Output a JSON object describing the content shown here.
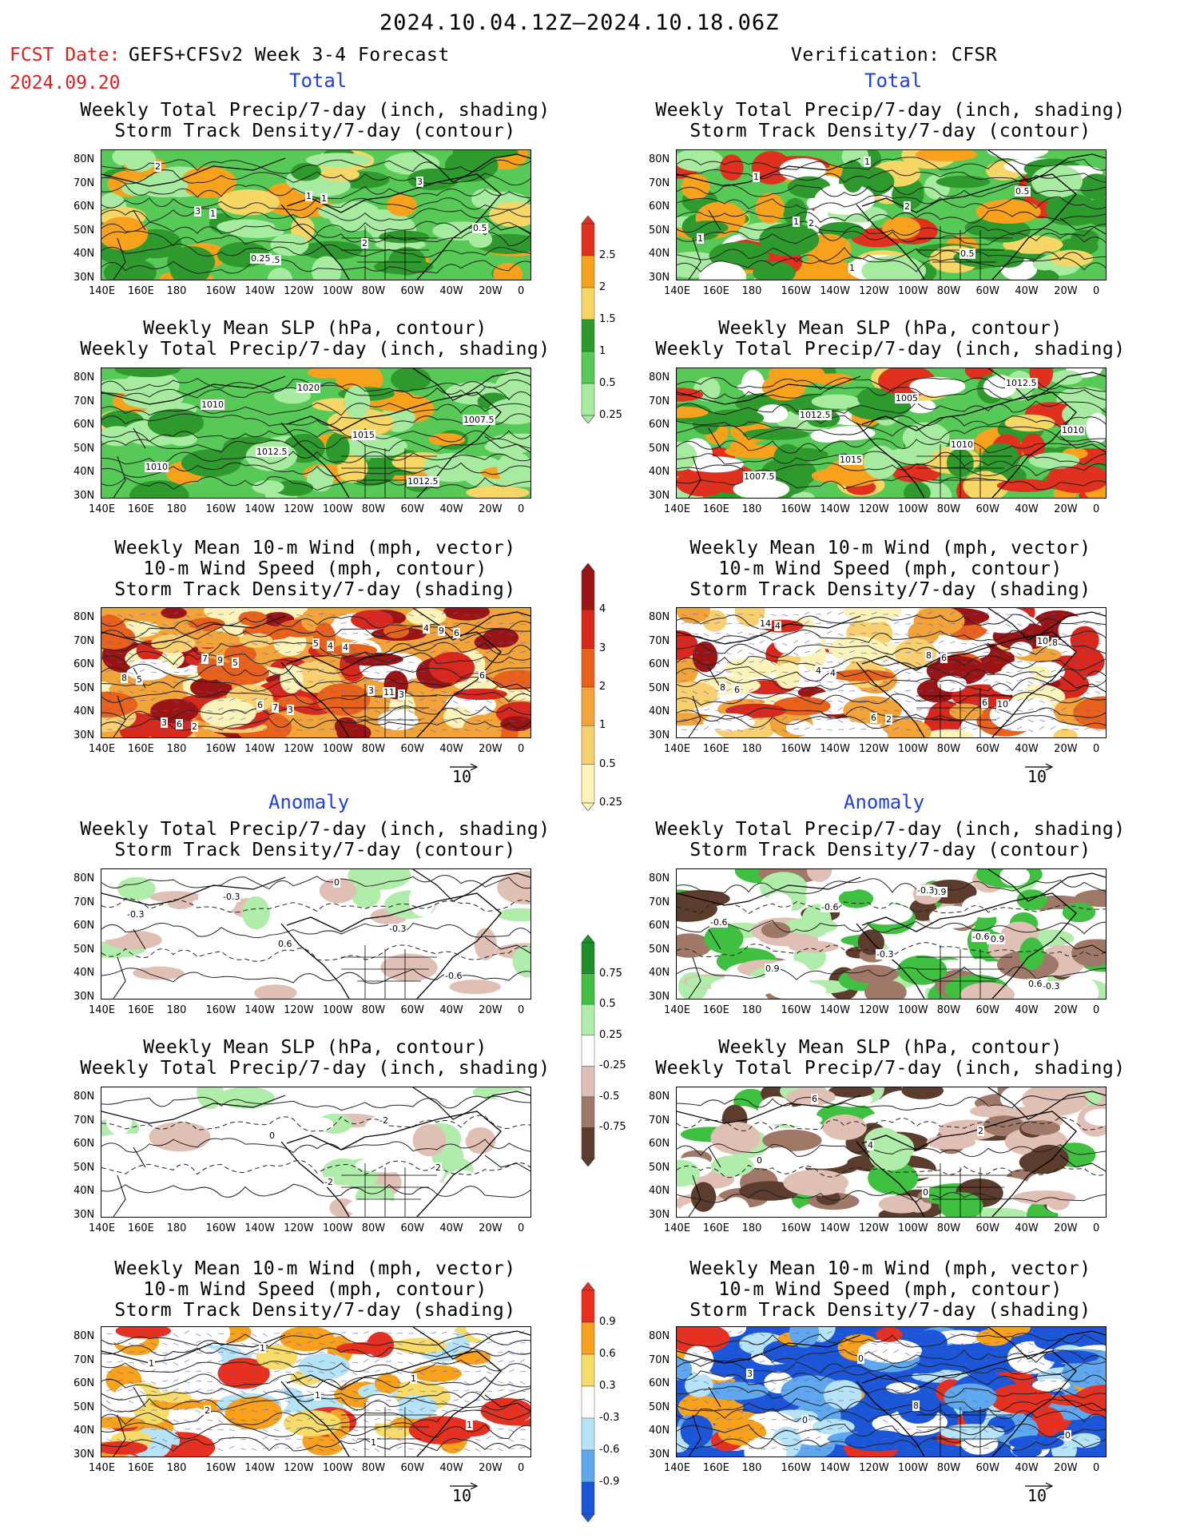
{
  "header": {
    "date_range": "2024.10.04.12Z–2024.10.18.06Z",
    "fcst_label": "FCST Date:",
    "fcst_model": "GEFS+CFSv2 Week 3-4 Forecast",
    "fcst_date": "2024.09.20",
    "verification": "Verification: CFSR"
  },
  "sections": {
    "total": "Total",
    "anomaly": "Anomaly"
  },
  "titles": {
    "precip_storm": [
      "Weekly Total Precip/7-day (inch, shading)",
      "Storm Track Density/7-day (contour)"
    ],
    "slp_precip": [
      "Weekly Mean SLP (hPa, contour)",
      "Weekly Total Precip/7-day (inch, shading)"
    ],
    "wind": [
      "Weekly Mean 10-m Wind (mph, vector)",
      "10-m Wind Speed (mph, contour)",
      "Storm Track Density/7-day (shading)"
    ]
  },
  "axes": {
    "lat_ticks": [
      "80N",
      "70N",
      "60N",
      "50N",
      "40N",
      "30N"
    ],
    "lon_ticks": [
      "140E",
      "160E",
      "180",
      "160W",
      "140W",
      "120W",
      "100W",
      "80W",
      "60W",
      "40W",
      "20W",
      "0"
    ]
  },
  "vector_ref": "10",
  "colorbars": [
    {
      "id": "precip_total",
      "labels": [
        "2.5",
        "2",
        "1.5",
        "1",
        "0.5",
        "0.25"
      ],
      "colors": [
        "#e0301e",
        "#f7a11c",
        "#f6d664",
        "#2e9a2e",
        "#56c956",
        "#a6eba0"
      ]
    },
    {
      "id": "storm_total",
      "labels": [
        "4",
        "3",
        "2",
        "1",
        "0.5",
        "0.25"
      ],
      "colors": [
        "#9b1414",
        "#d8281c",
        "#e8621c",
        "#f2a43a",
        "#f8d070",
        "#fbf3b8"
      ]
    },
    {
      "id": "precip_anom",
      "labels": [
        "0.75",
        "0.5",
        "0.25",
        "-0.25",
        "-0.5",
        "-0.75"
      ],
      "colors": [
        "#1c8f2a",
        "#40c040",
        "#b0ecaa",
        "#ffffff",
        "#e0c0b4",
        "#a07868",
        "#5c3c2c"
      ]
    },
    {
      "id": "storm_anom",
      "labels": [
        "0.9",
        "0.6",
        "0.3",
        "-0.3",
        "-0.6",
        "-0.9"
      ],
      "colors": [
        "#e8301e",
        "#f7a11c",
        "#f8dc6a",
        "#ffffff",
        "#b6e4f6",
        "#5fa8ee",
        "#1c56d8"
      ]
    }
  ],
  "contour_labels": {
    "p1L": [
      "1",
      "0.5",
      "1",
      "2",
      "0.5",
      "3",
      "2",
      "1",
      "0.25",
      "3"
    ],
    "p1R": [
      "1",
      "2",
      "1",
      "1",
      "0.5",
      "0.5",
      "2",
      "1",
      "1"
    ],
    "p2L": [
      "1012.5",
      "1010",
      "1010",
      "1007.5",
      "1012.5",
      "1015",
      "1020"
    ],
    "p2R": [
      "1012.5",
      "1007.5",
      "1010",
      "1012.5",
      "1010",
      "1005",
      "1015"
    ],
    "p3L": [
      "2",
      "5",
      "6",
      "3",
      "4",
      "3",
      "5",
      "6",
      "8",
      "9",
      "11",
      "4",
      "7",
      "9",
      "3",
      "6",
      "4",
      "3",
      "5",
      "6",
      "7"
    ],
    "p3R": [
      "6",
      "8",
      "10",
      "6",
      "2",
      "4",
      "4",
      "8",
      "10",
      "6",
      "8",
      "6",
      "4",
      "14"
    ],
    "p4L": [
      "-0.3",
      "-0.6",
      "-0.3",
      "0",
      "0.6",
      "-0.3"
    ],
    "p4R": [
      "-0.3",
      "-0.9",
      "0.9",
      "-0.3",
      "-0.6",
      "0.9",
      "-0.6",
      "0.6",
      "-0.6",
      "-0.3"
    ],
    "p5L": [
      "2",
      "-2",
      "-2",
      "0"
    ],
    "p5R": [
      "2",
      "0",
      "4",
      "6",
      "0"
    ],
    "p6L": [
      "1",
      "1",
      "1",
      "2",
      "1",
      "1",
      "1"
    ],
    "p6R": [
      "8",
      "0",
      "0",
      "3",
      "0"
    ]
  }
}
